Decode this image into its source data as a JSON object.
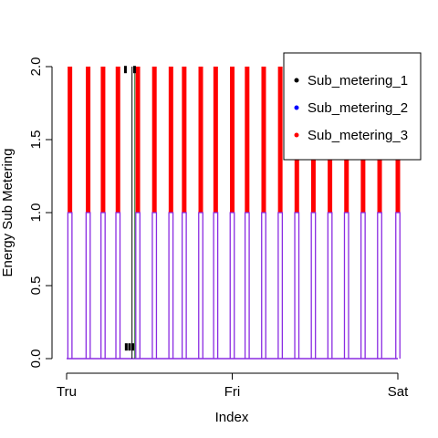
{
  "chart_data": {
    "type": "line",
    "title": "",
    "xlabel": "Index",
    "ylabel": "Energy Sub Metering",
    "xticks": [
      "Tru",
      "Fri",
      "Sat"
    ],
    "xlim": [
      0,
      2
    ],
    "ylim": [
      0,
      2
    ],
    "yticks": [
      "0.0",
      "0.5",
      "1.0",
      "1.5",
      "2.0"
    ],
    "ytick_values": [
      0,
      0.5,
      1,
      1.5,
      2
    ],
    "legend_position": "top-right",
    "series": [
      {
        "name": "Sub_metering_1",
        "color": "#000000",
        "note_points": [
          [
            0.36,
            0.08
          ],
          [
            0.38,
            0.08
          ],
          [
            0.4,
            0.08
          ],
          [
            0.355,
            1.98
          ],
          [
            0.41,
            1.98
          ]
        ],
        "spikes": [
          {
            "x": 0.395,
            "y": 2.0
          }
        ]
      },
      {
        "name": "Sub_metering_2",
        "color": "#0000ff",
        "pulses": [
          0.02,
          0.13,
          0.22,
          0.31,
          0.43,
          0.53,
          0.63,
          0.71,
          0.81,
          0.9,
          1.0,
          1.09,
          1.19,
          1.29,
          1.39,
          1.49,
          1.59,
          1.69,
          1.79,
          1.89,
          2.0
        ],
        "pulse_value": 1.0
      },
      {
        "name": "Sub_metering_3",
        "color": "#ff0000",
        "pulses": [
          0.02,
          0.13,
          0.22,
          0.31,
          0.43,
          0.53,
          0.63,
          0.71,
          0.81,
          0.9,
          1.0,
          1.09,
          1.19,
          1.29,
          1.39,
          1.49,
          1.59,
          1.69,
          1.79,
          1.89,
          2.0
        ],
        "pulse_value": 2.0
      }
    ]
  }
}
